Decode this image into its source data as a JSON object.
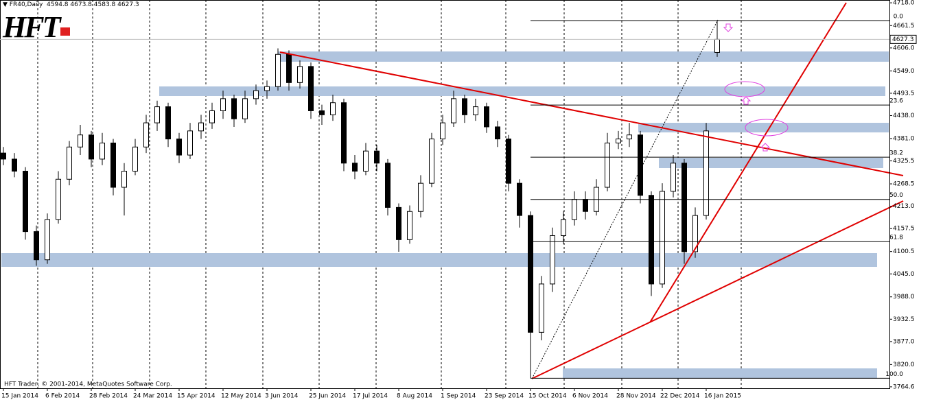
{
  "header": {
    "symbol": "FR40,Daily"
  },
  "logo": "HFT",
  "footer": "HFT Trader, © 2001-2014, MetaQuotes Software Corp.",
  "chart_data": {
    "type": "candlestick",
    "x": [
      0,
      4,
      8,
      12,
      16,
      20,
      24,
      28,
      32,
      36,
      40,
      44,
      48,
      52,
      56,
      60,
      64,
      68,
      72,
      76,
      80,
      84,
      88,
      92,
      96,
      100,
      104,
      108,
      112,
      116,
      120,
      124,
      128,
      132,
      136,
      140,
      144,
      148,
      152,
      156,
      160,
      164,
      168,
      172,
      176,
      180,
      184,
      188,
      192,
      196,
      200,
      204,
      208,
      212,
      216,
      220,
      224,
      228,
      232,
      236,
      240,
      244,
      248,
      252,
      256,
      260
    ],
    "open": [
      4345,
      4330,
      4300,
      4150,
      4080,
      4180,
      4280,
      4360,
      4390,
      4330,
      4370,
      4260,
      4300,
      4360,
      4420,
      4460,
      4380,
      4340,
      4400,
      4420,
      4450,
      4480,
      4430,
      4480,
      4500,
      4510,
      4590,
      4520,
      4560,
      4450,
      4440,
      4470,
      4320,
      4300,
      4350,
      4320,
      4210,
      4130,
      4200,
      4270,
      4380,
      4420,
      4480,
      4440,
      4460,
      4410,
      4380,
      4270,
      4190,
      3900,
      4020,
      4140,
      4180,
      4230,
      4200,
      4260,
      4370,
      4380,
      4390,
      4240,
      4020,
      4250,
      4320,
      4100,
      4190,
      4594.8
    ],
    "high": [
      4360,
      4345,
      4310,
      4165,
      4195,
      4300,
      4375,
      4415,
      4400,
      4395,
      4380,
      4320,
      4380,
      4440,
      4475,
      4470,
      4395,
      4420,
      4440,
      4470,
      4500,
      4490,
      4500,
      4515,
      4525,
      4605,
      4600,
      4575,
      4570,
      4465,
      4490,
      4480,
      4340,
      4370,
      4365,
      4330,
      4220,
      4215,
      4290,
      4395,
      4440,
      4500,
      4490,
      4480,
      4470,
      4425,
      4390,
      4280,
      4200,
      4040,
      4160,
      4200,
      4250,
      4250,
      4280,
      4395,
      4400,
      4420,
      4400,
      4250,
      4270,
      4340,
      4330,
      4210,
      4420,
      4673.8
    ],
    "low": [
      4315,
      4285,
      4130,
      4065,
      4070,
      4170,
      4265,
      4340,
      4310,
      4315,
      4240,
      4190,
      4290,
      4345,
      4400,
      4360,
      4320,
      4330,
      4380,
      4405,
      4430,
      4410,
      4420,
      4465,
      4480,
      4500,
      4500,
      4505,
      4430,
      4415,
      4425,
      4300,
      4280,
      4290,
      4300,
      4190,
      4100,
      4120,
      4185,
      4260,
      4365,
      4410,
      4420,
      4425,
      4395,
      4360,
      4250,
      4160,
      3786,
      3880,
      4000,
      4120,
      4165,
      4180,
      4190,
      4250,
      4355,
      4360,
      4220,
      3990,
      4010,
      4235,
      4070,
      4085,
      4180,
      4583.8
    ],
    "close": [
      4330,
      4300,
      4150,
      4080,
      4180,
      4280,
      4360,
      4390,
      4330,
      4370,
      4260,
      4300,
      4360,
      4420,
      4460,
      4380,
      4340,
      4400,
      4420,
      4450,
      4480,
      4430,
      4480,
      4500,
      4510,
      4590,
      4520,
      4560,
      4450,
      4440,
      4470,
      4320,
      4300,
      4350,
      4320,
      4210,
      4130,
      4200,
      4270,
      4380,
      4420,
      4480,
      4440,
      4460,
      4410,
      4380,
      4270,
      4190,
      3900,
      4020,
      4140,
      4180,
      4230,
      4200,
      4260,
      4370,
      4380,
      4390,
      4240,
      4020,
      4250,
      4320,
      4100,
      4190,
      4400,
      4627.3
    ],
    "xlim": [
      -1.25,
      322.75
    ],
    "xticks": [
      {
        "value": 0,
        "label": "15 Jan 2014"
      },
      {
        "value": 16,
        "label": "6 Feb 2014"
      },
      {
        "value": 32,
        "label": "28 Feb 2014"
      },
      {
        "value": 48,
        "label": "24 Mar 2014"
      },
      {
        "value": 64,
        "label": "15 Apr 2014"
      },
      {
        "value": 80,
        "label": "12 May 2014"
      },
      {
        "value": 96,
        "label": "3 Jun 2014"
      },
      {
        "value": 112,
        "label": "25 Jun 2014"
      },
      {
        "value": 128,
        "label": "17 Jul 2014"
      },
      {
        "value": 144,
        "label": "8 Aug 2014"
      },
      {
        "value": 160,
        "label": "1 Sep 2014"
      },
      {
        "value": 176,
        "label": "23 Sep 2014"
      },
      {
        "value": 192,
        "label": "15 Oct 2014"
      },
      {
        "value": 208,
        "label": "6 Nov 2014"
      },
      {
        "value": 224,
        "label": "28 Nov 2014"
      },
      {
        "value": 240,
        "label": "22 Dec 2014"
      },
      {
        "value": 256,
        "label": "16 Jan 2015"
      }
    ],
    "ylim": [
      3761,
      4725
    ],
    "yticks": [
      {
        "value": 4718,
        "label": "4718.0"
      },
      4661.5,
      {
        "value": 4606,
        "label": "4606.0"
      },
      {
        "value": 4549,
        "label": "4549.0"
      },
      4493.5,
      {
        "value": 4438,
        "label": "4438.0"
      },
      {
        "value": 4381,
        "label": "4381.0"
      },
      4325.5,
      4268.5,
      {
        "value": 4213,
        "label": "4213.0"
      },
      4157.5,
      4100.5,
      {
        "value": 4045,
        "label": "4045.0"
      },
      {
        "value": 3988,
        "label": "3988.0"
      },
      3932.5,
      {
        "value": 3877,
        "label": "3877.0"
      },
      {
        "value": 3820,
        "label": "3820.0"
      },
      3764.6
    ],
    "fibonacci": {
      "levels": [
        {
          "value": 0,
          "label": "0.0"
        },
        23.6,
        38.2,
        {
          "value": 50,
          "label": "50.0"
        },
        61.8,
        {
          "value": 100,
          "label": "100.0"
        }
      ]
    },
    "colors": {
      "up": "#ffffff",
      "down": "#000000",
      "outline": "#000000"
    }
  }
}
